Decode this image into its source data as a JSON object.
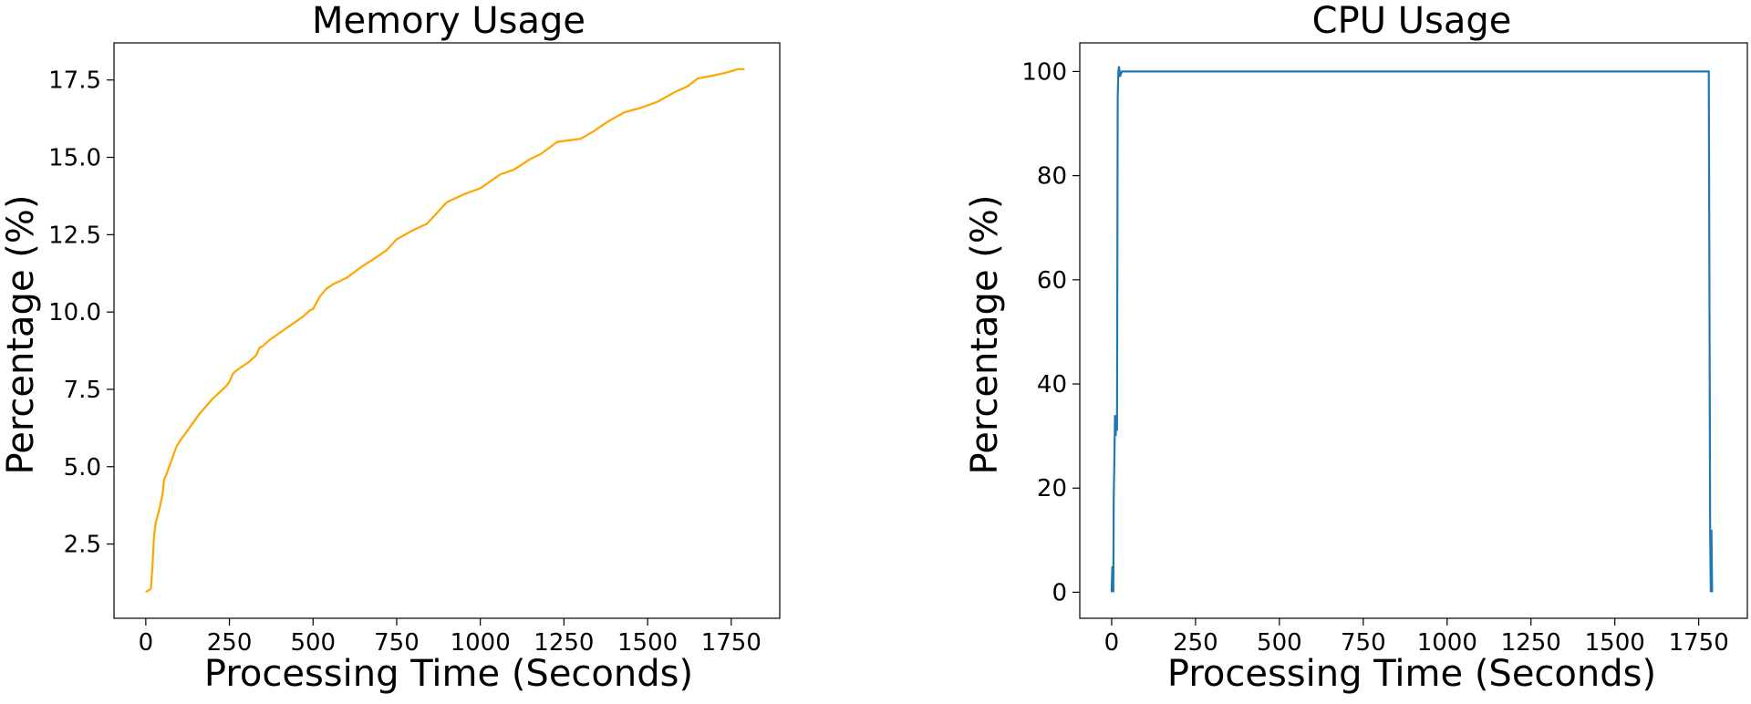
{
  "chart_data": [
    {
      "type": "line",
      "title": "Memory Usage",
      "xlabel": "Processing Time (Seconds)",
      "ylabel": "Percentage (%)",
      "xlim": [
        -95,
        1895
      ],
      "ylim": [
        0.1,
        18.7
      ],
      "xticks": [
        0,
        250,
        500,
        750,
        1000,
        1250,
        1500,
        1750
      ],
      "yticks": [
        2.5,
        5.0,
        7.5,
        10.0,
        12.5,
        15.0,
        17.5
      ],
      "ytick_labels": [
        "2.5",
        "5.0",
        "7.5",
        "10.0",
        "12.5",
        "15.0",
        "17.5"
      ],
      "grid": false,
      "color": "#ffa500",
      "series": [
        {
          "x": [
            0,
            15,
            20,
            25,
            30,
            40,
            50,
            55,
            60,
            70,
            80,
            90,
            100,
            120,
            140,
            160,
            180,
            200,
            220,
            240,
            250,
            260,
            270,
            290,
            310,
            330,
            340,
            350,
            370,
            390,
            410,
            430,
            450,
            470,
            490,
            500,
            520,
            540,
            560,
            600,
            650,
            700,
            720,
            750,
            800,
            840,
            870,
            900,
            950,
            1000,
            1060,
            1100,
            1150,
            1180,
            1230,
            1300,
            1340,
            1380,
            1430,
            1480,
            1530,
            1580,
            1620,
            1650,
            1700,
            1740,
            1770,
            1790
          ],
          "y": [
            0.95,
            1.05,
            1.8,
            2.8,
            3.2,
            3.6,
            4.1,
            4.6,
            4.7,
            5.0,
            5.3,
            5.6,
            5.8,
            6.1,
            6.4,
            6.7,
            6.95,
            7.2,
            7.4,
            7.6,
            7.75,
            8.0,
            8.1,
            8.25,
            8.4,
            8.6,
            8.85,
            8.9,
            9.1,
            9.25,
            9.4,
            9.55,
            9.7,
            9.85,
            10.05,
            10.1,
            10.5,
            10.75,
            10.9,
            11.1,
            11.5,
            11.85,
            12.0,
            12.35,
            12.65,
            12.85,
            13.2,
            13.55,
            13.8,
            14.0,
            14.45,
            14.6,
            14.95,
            15.1,
            15.5,
            15.6,
            15.85,
            16.15,
            16.45,
            16.6,
            16.8,
            17.1,
            17.3,
            17.55,
            17.65,
            17.75,
            17.85,
            17.85
          ]
        }
      ]
    },
    {
      "type": "line",
      "title": "CPU Usage",
      "xlabel": "Processing Time (Seconds)",
      "ylabel": "Percentage (%)",
      "xlim": [
        -95,
        1895
      ],
      "ylim": [
        -5,
        105.5
      ],
      "xticks": [
        0,
        250,
        500,
        750,
        1000,
        1250,
        1500,
        1750
      ],
      "yticks": [
        0,
        20,
        40,
        60,
        80,
        100
      ],
      "ytick_labels": [
        "0",
        "20",
        "40",
        "60",
        "80",
        "100"
      ],
      "grid": false,
      "color": "#1f77b4",
      "series": [
        {
          "x": [
            0,
            2,
            3,
            4,
            5,
            6,
            8,
            10,
            12,
            14,
            16,
            18,
            20,
            22,
            25,
            30,
            40,
            60,
            100,
            150,
            200,
            300,
            400,
            500,
            600,
            700,
            800,
            900,
            1000,
            1100,
            1200,
            1300,
            1400,
            1500,
            1600,
            1700,
            1780,
            1782,
            1784,
            1786,
            1788,
            1790
          ],
          "y": [
            0,
            5,
            0,
            5,
            0,
            18,
            25,
            34,
            30,
            34,
            31,
            95,
            100,
            101,
            99,
            100,
            100,
            100,
            100,
            100,
            100,
            100,
            100,
            100,
            100,
            100,
            100,
            100,
            100,
            100,
            100,
            100,
            100,
            100,
            100,
            100,
            100,
            60,
            12,
            0,
            12,
            0
          ]
        }
      ]
    }
  ]
}
